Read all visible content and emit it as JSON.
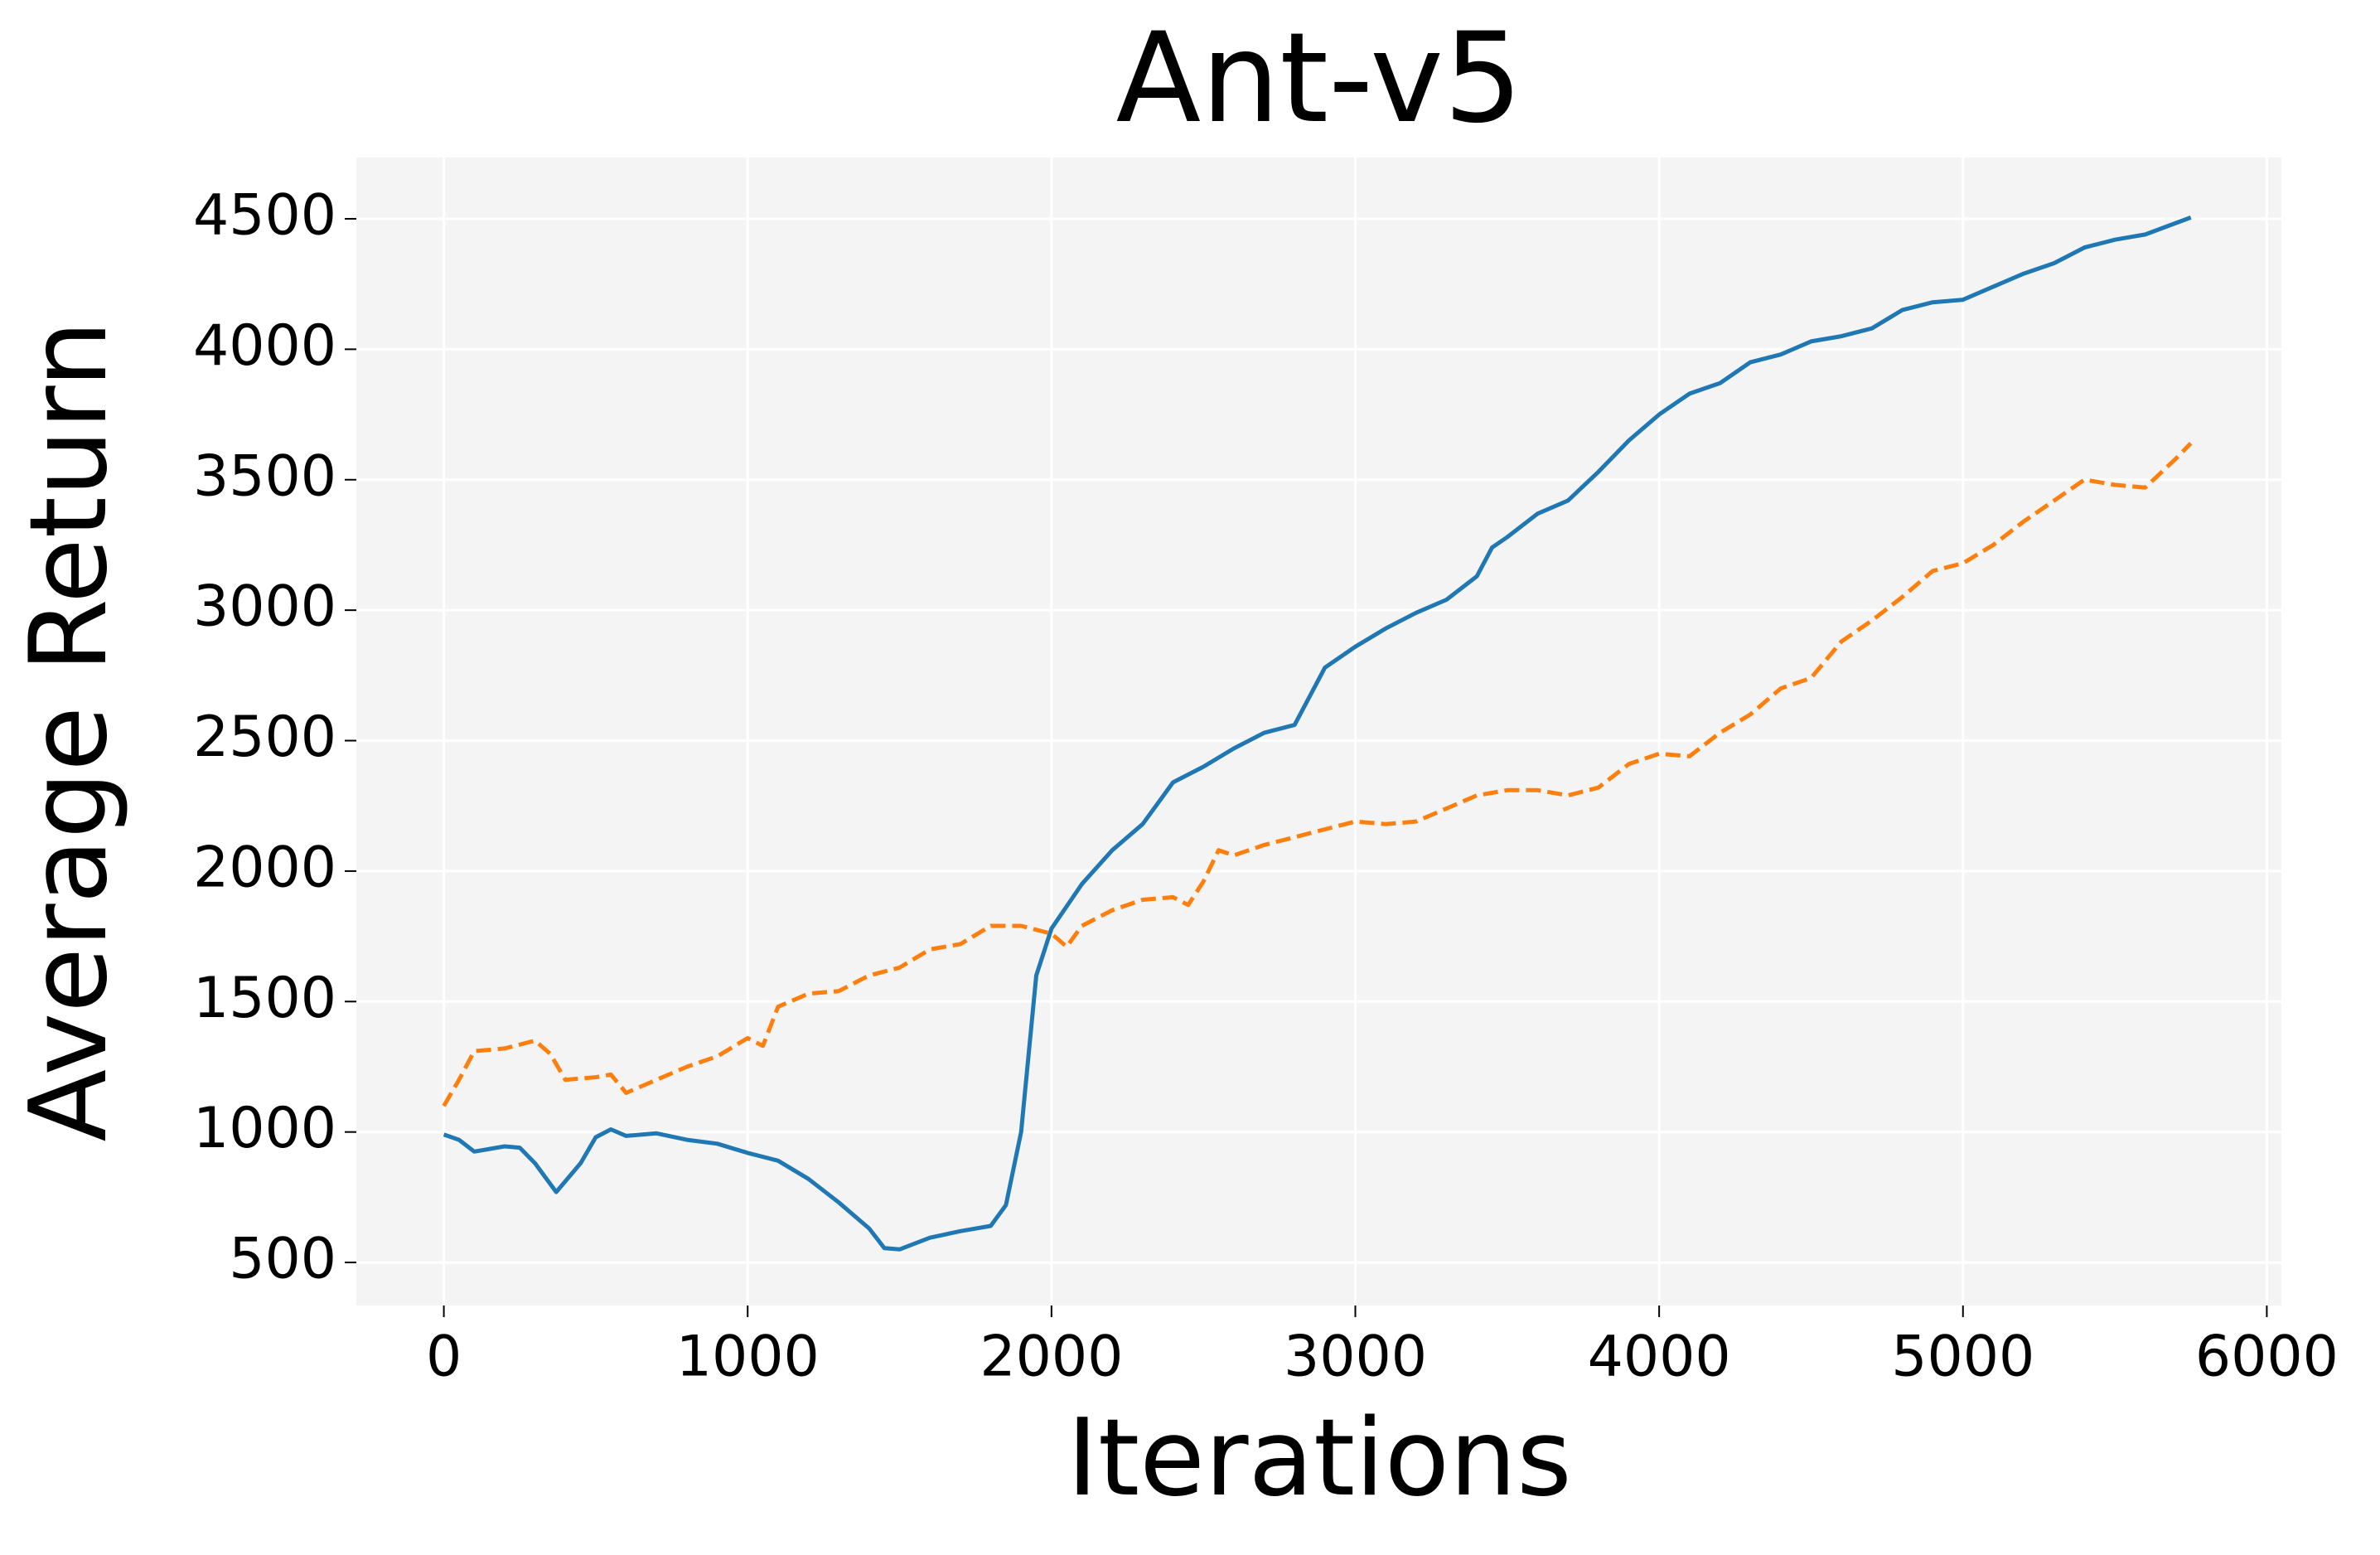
{
  "chart_data": {
    "type": "line",
    "title": "Ant-v5",
    "xlabel": "Iterations",
    "ylabel": "Average Return",
    "xlim": [
      -288,
      6048
    ],
    "ylim": [
      335,
      4735
    ],
    "xticks": [
      0,
      1000,
      2000,
      3000,
      4000,
      5000,
      6000
    ],
    "yticks": [
      500,
      1000,
      1500,
      2000,
      2500,
      3000,
      3500,
      4000,
      4500
    ],
    "grid": true,
    "series": [
      {
        "color": "#1f77b4",
        "dash": "solid",
        "x": [
          0,
          50,
          100,
          200,
          250,
          300,
          370,
          450,
          500,
          550,
          600,
          700,
          800,
          900,
          1000,
          1100,
          1200,
          1300,
          1400,
          1450,
          1500,
          1600,
          1700,
          1800,
          1850,
          1900,
          1950,
          2000,
          2100,
          2200,
          2300,
          2400,
          2500,
          2600,
          2700,
          2800,
          2900,
          3000,
          3100,
          3200,
          3300,
          3400,
          3450,
          3500,
          3600,
          3700,
          3800,
          3900,
          4000,
          4100,
          4200,
          4300,
          4400,
          4500,
          4600,
          4700,
          4800,
          4900,
          5000,
          5100,
          5200,
          5300,
          5400,
          5500,
          5600,
          5750
        ],
        "values": [
          990,
          970,
          925,
          945,
          940,
          880,
          770,
          880,
          980,
          1010,
          985,
          995,
          970,
          955,
          920,
          890,
          820,
          730,
          630,
          555,
          550,
          595,
          620,
          640,
          720,
          1000,
          1600,
          1780,
          1950,
          2080,
          2180,
          2340,
          2400,
          2470,
          2530,
          2560,
          2780,
          2860,
          2930,
          2990,
          3040,
          3130,
          3240,
          3280,
          3370,
          3420,
          3530,
          3650,
          3750,
          3830,
          3870,
          3950,
          3980,
          4030,
          4050,
          4080,
          4150,
          4180,
          4190,
          4240,
          4290,
          4330,
          4390,
          4420,
          4440,
          4505
        ]
      },
      {
        "color": "#ff7f0e",
        "dash": "dashed",
        "x": [
          0,
          50,
          100,
          200,
          300,
          350,
          400,
          500,
          550,
          600,
          700,
          800,
          900,
          1000,
          1050,
          1100,
          1200,
          1300,
          1400,
          1500,
          1600,
          1700,
          1800,
          1900,
          2000,
          2050,
          2100,
          2200,
          2300,
          2400,
          2450,
          2500,
          2550,
          2600,
          2700,
          2800,
          2900,
          3000,
          3100,
          3200,
          3300,
          3400,
          3500,
          3600,
          3700,
          3800,
          3900,
          4000,
          4100,
          4200,
          4300,
          4400,
          4500,
          4600,
          4700,
          4800,
          4900,
          5000,
          5100,
          5200,
          5300,
          5400,
          5500,
          5600,
          5700,
          5750
        ],
        "values": [
          1100,
          1200,
          1310,
          1320,
          1350,
          1300,
          1200,
          1210,
          1220,
          1150,
          1200,
          1250,
          1290,
          1360,
          1330,
          1480,
          1530,
          1540,
          1600,
          1630,
          1700,
          1720,
          1790,
          1790,
          1760,
          1710,
          1790,
          1850,
          1890,
          1900,
          1870,
          1960,
          2080,
          2060,
          2100,
          2130,
          2160,
          2190,
          2180,
          2190,
          2240,
          2290,
          2310,
          2310,
          2290,
          2320,
          2410,
          2450,
          2440,
          2530,
          2600,
          2700,
          2740,
          2880,
          2960,
          3050,
          3150,
          3180,
          3250,
          3340,
          3420,
          3500,
          3480,
          3470,
          3580,
          3640
        ]
      }
    ]
  }
}
